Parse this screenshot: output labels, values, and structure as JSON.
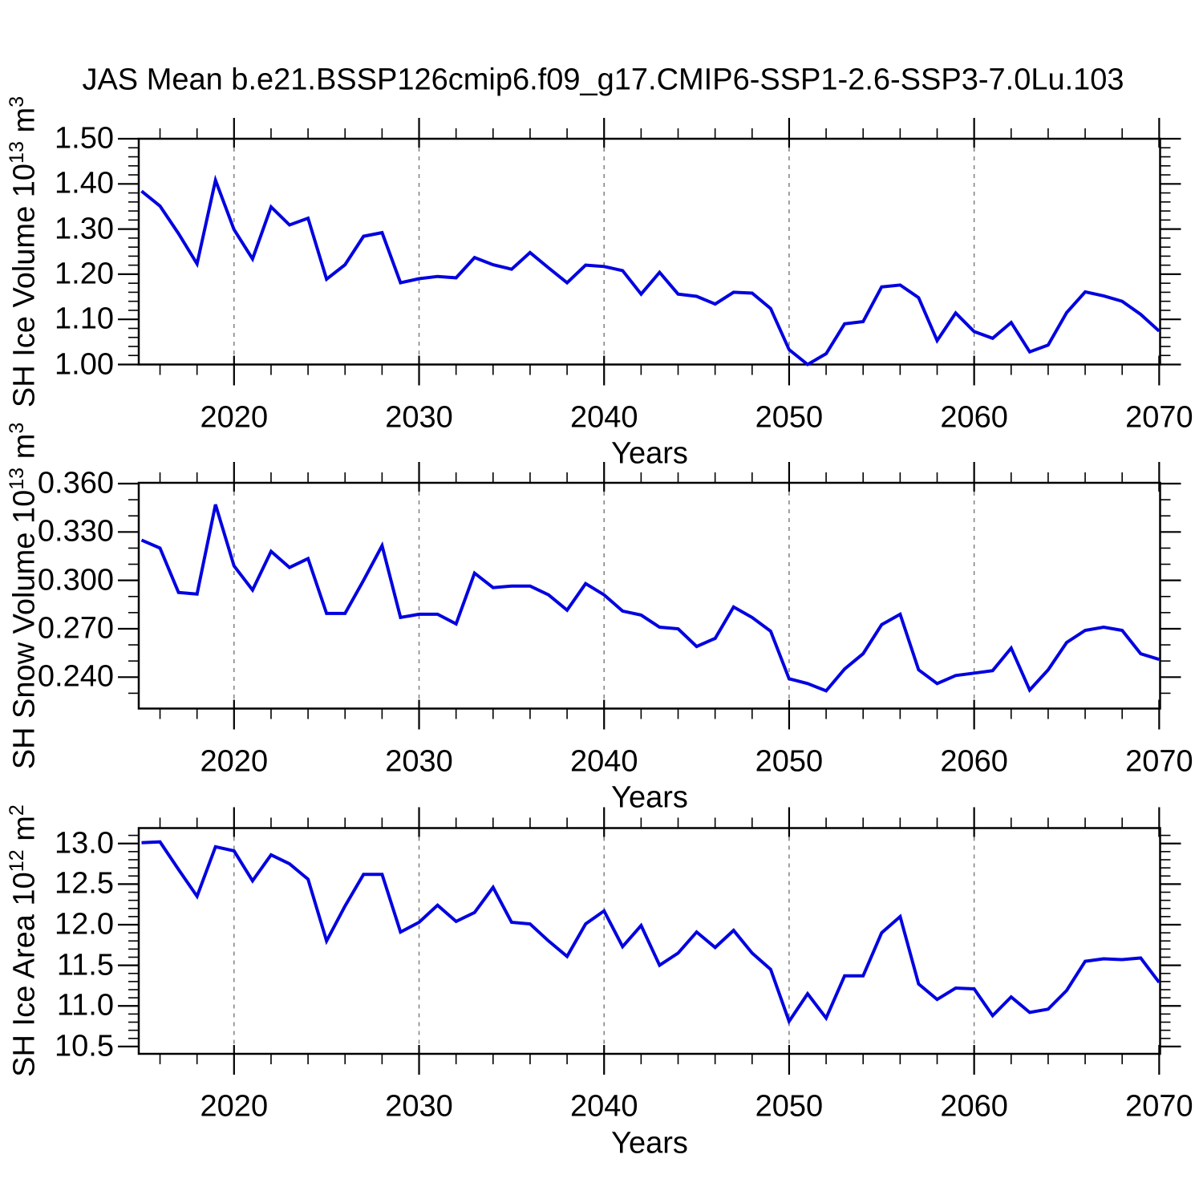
{
  "title": "JAS Mean b.e21.BSSP126cmip6.f09_g17.CMIP6-SSP1-2.6-SSP3-7.0Lu.103",
  "colors": {
    "line": "#0202e0",
    "grid": "#808080",
    "axis": "#000000",
    "text": "#000000",
    "background": "#ffffff"
  },
  "chart_data": [
    {
      "type": "line",
      "name": "sh-ice-volume",
      "ylabel": {
        "base": "SH Ice Volume 10",
        "exp": "13",
        "unit": " m",
        "unit_exp": "3"
      },
      "xlabel": "Years",
      "x_start": 2015,
      "x_step": 1,
      "values": [
        1.384,
        1.351,
        1.29,
        1.223,
        1.408,
        1.299,
        1.234,
        1.349,
        1.309,
        1.324,
        1.189,
        1.221,
        1.284,
        1.292,
        1.181,
        1.19,
        1.195,
        1.192,
        1.237,
        1.221,
        1.211,
        1.248,
        1.214,
        1.181,
        1.22,
        1.217,
        1.208,
        1.156,
        1.204,
        1.156,
        1.151,
        1.134,
        1.16,
        1.158,
        1.124,
        1.033,
        1.0,
        1.024,
        1.09,
        1.095,
        1.172,
        1.176,
        1.148,
        1.053,
        1.114,
        1.073,
        1.058,
        1.093,
        1.028,
        1.043,
        1.115,
        1.161,
        1.152,
        1.14,
        1.111,
        1.074
      ],
      "xlim": [
        2014.85,
        2070.05
      ],
      "ylim": [
        1.0,
        1.5
      ],
      "xticks": [
        2020,
        2030,
        2040,
        2050,
        2060,
        2070
      ],
      "xtick_labels": [
        "2020",
        "2030",
        "2040",
        "2050",
        "2060",
        "2070"
      ],
      "x_minor": {
        "start": 2016,
        "step": 2,
        "end": 2068
      },
      "grid_x": [
        2020,
        2030,
        2040,
        2050,
        2060
      ],
      "yticks": [
        1.0,
        1.1,
        1.2,
        1.3,
        1.4,
        1.5
      ],
      "ytick_labels": [
        "1.00",
        "1.10",
        "1.20",
        "1.30",
        "1.40",
        "1.50"
      ],
      "y_minor_step": 0.02,
      "grid": "vertical-dashed-only",
      "legend": "none"
    },
    {
      "type": "line",
      "name": "sh-snow-volume",
      "ylabel": {
        "base": "SH Snow Volume 10",
        "exp": "13",
        "unit": " m",
        "unit_exp": "3"
      },
      "xlabel": "Years",
      "x_start": 2015,
      "x_step": 1,
      "values": [
        0.325,
        0.32,
        0.2925,
        0.2915,
        0.347,
        0.309,
        0.294,
        0.318,
        0.308,
        0.3135,
        0.2795,
        0.2795,
        0.3,
        0.3215,
        0.277,
        0.279,
        0.279,
        0.273,
        0.3045,
        0.2955,
        0.2965,
        0.2965,
        0.291,
        0.2815,
        0.298,
        0.291,
        0.281,
        0.2785,
        0.271,
        0.27,
        0.259,
        0.264,
        0.2835,
        0.277,
        0.2685,
        0.239,
        0.236,
        0.2315,
        0.245,
        0.2545,
        0.2725,
        0.279,
        0.2445,
        0.236,
        0.241,
        0.2425,
        0.244,
        0.258,
        0.232,
        0.2445,
        0.2615,
        0.269,
        0.271,
        0.269,
        0.2545,
        0.251
      ],
      "xlim": [
        2014.85,
        2070.05
      ],
      "ylim": [
        0.2205,
        0.3605
      ],
      "xticks": [
        2020,
        2030,
        2040,
        2050,
        2060,
        2070
      ],
      "xtick_labels": [
        "2020",
        "2030",
        "2040",
        "2050",
        "2060",
        "2070"
      ],
      "x_minor": {
        "start": 2016,
        "step": 2,
        "end": 2068
      },
      "grid_x": [
        2020,
        2030,
        2040,
        2050,
        2060
      ],
      "yticks": [
        0.24,
        0.27,
        0.3,
        0.33,
        0.36
      ],
      "ytick_labels": [
        "0.240",
        "0.270",
        "0.300",
        "0.330",
        "0.360"
      ],
      "y_minor_step": 0.01,
      "grid": "vertical-dashed-only",
      "legend": "none"
    },
    {
      "type": "line",
      "name": "sh-ice-area",
      "ylabel": {
        "base": "SH Ice Area 10",
        "exp": "12",
        "unit": " m",
        "unit_exp": "2"
      },
      "xlabel": "Years",
      "x_start": 2015,
      "x_step": 1,
      "values": [
        13.01,
        13.02,
        12.68,
        12.35,
        12.96,
        12.91,
        12.54,
        12.86,
        12.75,
        12.56,
        11.8,
        12.23,
        12.62,
        12.62,
        11.91,
        12.03,
        12.24,
        12.04,
        12.15,
        12.46,
        12.03,
        12.01,
        11.8,
        11.61,
        12.01,
        12.17,
        11.73,
        11.99,
        11.5,
        11.65,
        11.91,
        11.72,
        11.93,
        11.65,
        11.45,
        10.81,
        11.15,
        10.85,
        11.37,
        11.37,
        11.9,
        12.1,
        11.27,
        11.08,
        11.22,
        11.21,
        10.88,
        11.11,
        10.92,
        10.96,
        11.19,
        11.55,
        11.58,
        11.57,
        11.59,
        11.29
      ],
      "xlim": [
        2014.85,
        2070.05
      ],
      "ylim": [
        10.41,
        13.19
      ],
      "xticks": [
        2020,
        2030,
        2040,
        2050,
        2060,
        2070
      ],
      "xtick_labels": [
        "2020",
        "2030",
        "2040",
        "2050",
        "2060",
        "2070"
      ],
      "x_minor": {
        "start": 2016,
        "step": 2,
        "end": 2068
      },
      "grid_x": [
        2020,
        2030,
        2040,
        2050,
        2060
      ],
      "yticks": [
        10.5,
        11.0,
        11.5,
        12.0,
        12.5,
        13.0
      ],
      "ytick_labels": [
        "10.5",
        "11.0",
        "11.5",
        "12.0",
        "12.5",
        "13.0"
      ],
      "y_minor_step": 0.1,
      "grid": "vertical-dashed-only",
      "legend": "none"
    }
  ]
}
